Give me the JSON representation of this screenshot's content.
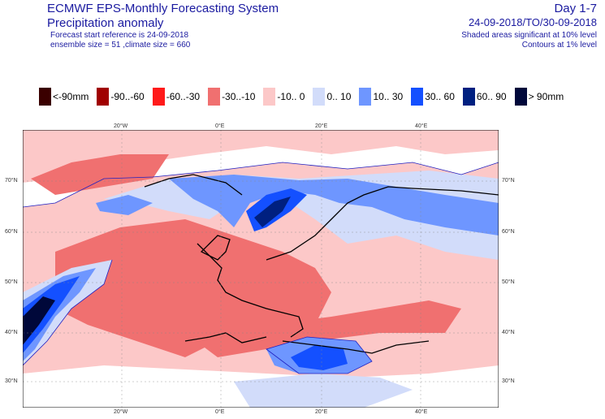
{
  "header": {
    "title": "ECMWF EPS-Monthly Forecasting System",
    "subtitle": "Precipitation anomaly",
    "forecast_start": "Forecast start reference is 24-09-2018",
    "ensemble": "ensemble size = 51  ,climate size = 660",
    "day_range": "Day 1-7",
    "date_range": "24-09-2018/TO/30-09-2018",
    "shaded_note": "Shaded areas significant at 10% level",
    "contour_note": "Contours at 1% level"
  },
  "legend": [
    {
      "label": "<-90mm",
      "color": "#3a0000"
    },
    {
      "label": "-90..-60",
      "color": "#a00000"
    },
    {
      "label": "-60..-30",
      "color": "#ff1a1a"
    },
    {
      "label": "-30..-10",
      "color": "#f07070"
    },
    {
      "label": "-10..  0",
      "color": "#fcc8c8"
    },
    {
      "label": "0..  10",
      "color": "#d2dcfa"
    },
    {
      "label": "10..  30",
      "color": "#6e96ff"
    },
    {
      "label": "30..  60",
      "color": "#1450ff"
    },
    {
      "label": "60..  90",
      "color": "#002080"
    },
    {
      "label": ">  90mm",
      "color": "#00083a"
    }
  ],
  "axes": {
    "top_lon": [
      "20°W",
      "0°E",
      "20°E",
      "40°E"
    ],
    "bottom_lon": [
      "20°W",
      "0°E",
      "20°E",
      "40°E"
    ],
    "left_lat": [
      "70°N",
      "60°N",
      "50°N",
      "40°N",
      "30°N"
    ],
    "right_lat": [
      "70°N",
      "60°N",
      "50°N",
      "40°N",
      "30°N"
    ]
  }
}
